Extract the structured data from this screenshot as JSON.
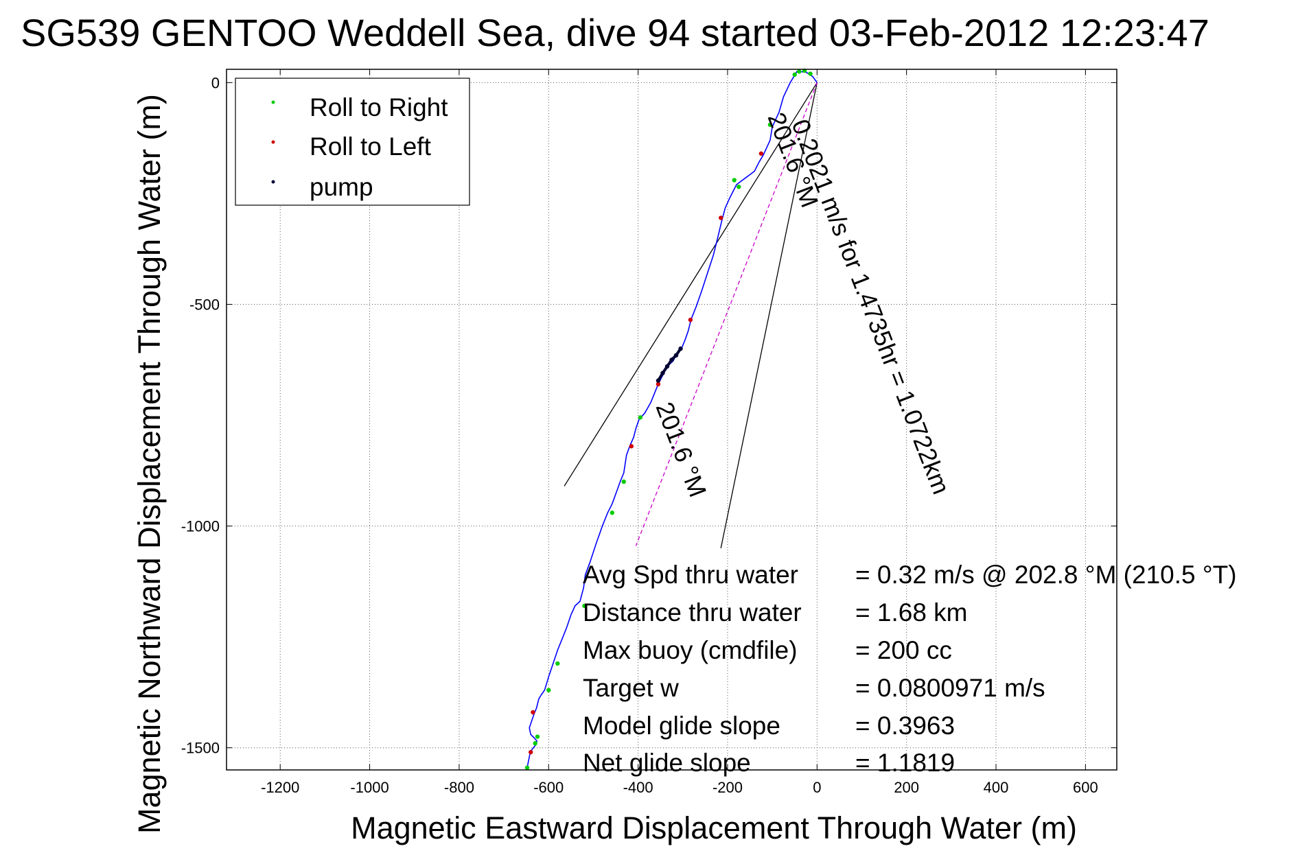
{
  "figure": {
    "title": "SG539 GENTOO Weddell Sea, dive 94 started 03-Feb-2012 12:23:47"
  },
  "chart_data": {
    "type": "line",
    "title": "SG539 GENTOO Weddell Sea, dive 94 started 03-Feb-2012 12:23:47",
    "xlabel": "Magnetic Eastward Displacement Through Water (m)",
    "ylabel": "Magnetic Northward Displacement Through Water (m)",
    "xlim": [
      -1320,
      670
    ],
    "ylim": [
      -1550,
      30
    ],
    "x_ticks": [
      -1200,
      -1000,
      -800,
      -600,
      -400,
      -200,
      0,
      200,
      400,
      600
    ],
    "x_tick_labels": [
      "-1200",
      "-1000",
      "-800",
      "-600",
      "-400",
      "-200",
      "0",
      "200",
      "400",
      "600"
    ],
    "y_ticks": [
      0,
      -500,
      -1000,
      -1500
    ],
    "y_tick_labels": [
      "0",
      "-500",
      "-1000",
      "-1500"
    ],
    "grid": true,
    "legend_position": "top-left",
    "colors": {
      "track": "#0000ff",
      "roll_right": "#00cc00",
      "roll_left": "#d00000",
      "pump": "#000033",
      "heading": "#cc00cc",
      "lines": "#000000"
    },
    "series": [
      {
        "name": "Roll to Right",
        "points": [
          [
            -50,
            18
          ],
          [
            -40,
            25
          ],
          [
            -28,
            27
          ],
          [
            -15,
            20
          ],
          [
            -105,
            -95
          ],
          [
            -185,
            -220
          ],
          [
            -175,
            -235
          ],
          [
            -395,
            -755
          ],
          [
            -432,
            -900
          ],
          [
            -458,
            -970
          ],
          [
            -520,
            -1180
          ],
          [
            -580,
            -1310
          ],
          [
            -600,
            -1370
          ],
          [
            -625,
            -1475
          ],
          [
            -630,
            -1490
          ],
          [
            -648,
            -1545
          ]
        ],
        "color": "#00cc00"
      },
      {
        "name": "Roll to Left",
        "points": [
          [
            -125,
            -160
          ],
          [
            -215,
            -305
          ],
          [
            -283,
            -535
          ],
          [
            -355,
            -680
          ],
          [
            -415,
            -820
          ],
          [
            -635,
            -1420
          ],
          [
            -640,
            -1510
          ]
        ],
        "color": "#d00000"
      },
      {
        "name": "pump",
        "points": [
          [
            -355,
            -672
          ],
          [
            -345,
            -655
          ],
          [
            -335,
            -640
          ],
          [
            -325,
            -625
          ],
          [
            -315,
            -615
          ],
          [
            -305,
            -600
          ]
        ],
        "color": "#000033"
      }
    ],
    "track": {
      "color": "#0000ff",
      "x": [
        0,
        -10,
        -25,
        -45,
        -60,
        -75,
        -85,
        -100,
        -105,
        -120,
        -130,
        -140,
        -160,
        -180,
        -185,
        -195,
        -205,
        -210,
        -215,
        -222,
        -232,
        -245,
        -258,
        -270,
        -280,
        -283,
        -288,
        -295,
        -303,
        -315,
        -322,
        -335,
        -345,
        -355,
        -363,
        -372,
        -385,
        -398,
        -405,
        -410,
        -418,
        -426,
        -432,
        -440,
        -449,
        -458,
        -468,
        -480,
        -494,
        -507,
        -518,
        -522,
        -530,
        -541,
        -550,
        -560,
        -570,
        -580,
        -590,
        -600,
        -609,
        -616,
        -622,
        -627,
        -633,
        -638,
        -643,
        -640,
        -632,
        -626,
        -630,
        -638,
        -642,
        -645,
        -648
      ],
      "y": [
        0,
        14,
        24,
        25,
        0,
        -32,
        -67,
        -100,
        -130,
        -163,
        -180,
        -200,
        -215,
        -230,
        -240,
        -260,
        -282,
        -300,
        -320,
        -350,
        -390,
        -430,
        -470,
        -505,
        -530,
        -540,
        -560,
        -580,
        -600,
        -615,
        -628,
        -640,
        -660,
        -680,
        -700,
        -722,
        -745,
        -760,
        -780,
        -800,
        -818,
        -840,
        -880,
        -900,
        -925,
        -950,
        -970,
        -1000,
        -1040,
        -1080,
        -1110,
        -1140,
        -1170,
        -1180,
        -1200,
        -1230,
        -1255,
        -1280,
        -1310,
        -1340,
        -1370,
        -1380,
        -1390,
        -1410,
        -1425,
        -1440,
        -1455,
        -1470,
        -1478,
        -1485,
        -1495,
        -1505,
        -1515,
        -1530,
        -1545
      ]
    },
    "guide_lines": [
      {
        "from": [
          0,
          0
        ],
        "to": [
          -565,
          -910
        ]
      },
      {
        "from": [
          0,
          0
        ],
        "to": [
          -215,
          -1050
        ]
      }
    ],
    "heading_line": {
      "from": [
        0,
        0
      ],
      "to": [
        -405,
        -1045
      ],
      "color": "#cc00cc"
    },
    "legend": [
      "Roll to Right",
      "Roll to Left",
      "pump"
    ],
    "rotated_annotations": [
      "201.6 °M",
      "0.2021 m/s for 1.4735hr = 1.0722km",
      "201.6 °M"
    ],
    "annotations": [
      {
        "label": "Avg Spd thru water",
        "value": "=  0.32 m/s @ 202.8 °M (210.5 °T)"
      },
      {
        "label": "Distance thru water",
        "value": "=  1.68 km"
      },
      {
        "label": "Max buoy (cmdfile)",
        "value": "= 200 cc"
      },
      {
        "label": "Target w",
        "value": "= 0.0800971 m/s"
      },
      {
        "label": "Model glide slope",
        "value": "= 0.3963"
      },
      {
        "label": "Net glide slope",
        "value": "= 1.1819"
      }
    ]
  }
}
